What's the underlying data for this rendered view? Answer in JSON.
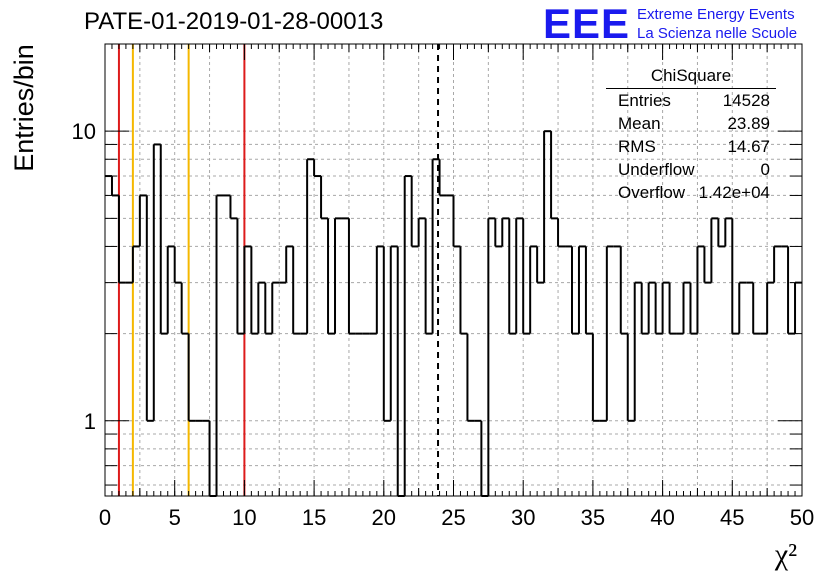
{
  "header": {
    "title": "PATE-01-2019-01-28-00013"
  },
  "logo": {
    "letters": "EEE",
    "line1": "Extreme Energy Events",
    "line2": "La Scienza nelle Scuole"
  },
  "stats": {
    "title": "ChiSquare",
    "rows": [
      {
        "label": "Entries",
        "value": "14528"
      },
      {
        "label": "Mean",
        "value": "23.89"
      },
      {
        "label": "RMS",
        "value": "14.67"
      },
      {
        "label": "Underflow",
        "value": "0"
      },
      {
        "label": "Overflow",
        "value": "1.42e+04"
      }
    ]
  },
  "chart_data": {
    "type": "histogram",
    "xlabel": "χ²",
    "ylabel": "Entries/bin",
    "xlim": [
      0,
      50
    ],
    "ylim": [
      0.55,
      20
    ],
    "y_scale": "log",
    "grid": true,
    "bin_width": 0.5,
    "x_ticks": [
      0,
      5,
      10,
      15,
      20,
      25,
      30,
      35,
      40,
      45,
      50
    ],
    "y_ticks": [
      1,
      10
    ],
    "values": [
      7,
      6,
      3,
      3,
      4,
      6,
      1,
      9,
      2,
      4,
      3,
      2,
      1,
      1,
      1,
      0,
      6,
      6,
      5,
      2,
      4,
      2,
      3,
      2,
      3,
      3,
      4,
      2,
      2,
      8,
      7,
      5,
      2,
      5,
      5,
      2,
      2,
      2,
      2,
      4,
      1,
      4,
      0,
      7,
      4,
      5,
      2,
      8,
      6,
      6,
      4,
      2,
      1,
      1,
      0,
      5,
      4,
      5,
      2,
      5,
      2,
      4,
      3,
      10,
      5,
      4,
      4,
      2,
      4,
      2,
      1,
      1,
      4,
      4,
      2,
      1,
      3,
      2,
      3,
      2,
      3,
      2,
      2,
      3,
      2,
      4,
      3,
      5,
      4,
      5,
      2,
      3,
      3,
      2,
      2,
      3,
      4,
      4,
      2,
      3
    ],
    "vertical_lines": [
      {
        "x": 1,
        "color": "#dd1b1b",
        "style": "solid"
      },
      {
        "x": 2,
        "color": "#f5b800",
        "style": "solid"
      },
      {
        "x": 6,
        "color": "#f5b800",
        "style": "solid"
      },
      {
        "x": 10,
        "color": "#dd1b1b",
        "style": "solid"
      },
      {
        "x": 23.89,
        "color": "#000000",
        "style": "dashed"
      }
    ]
  }
}
